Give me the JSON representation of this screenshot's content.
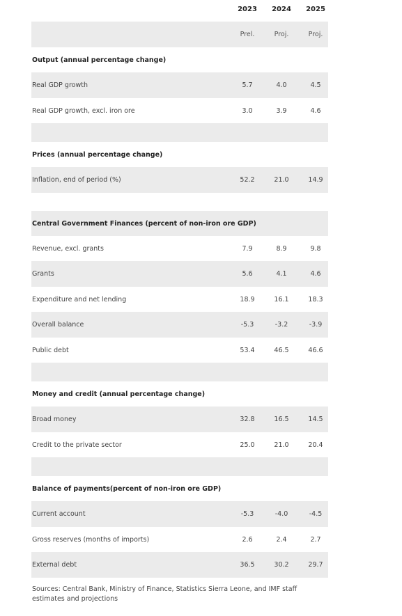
{
  "header": {
    "years": [
      "2023",
      "2024",
      "2025"
    ],
    "status": [
      "Prel.",
      "Proj.",
      "Proj."
    ]
  },
  "sections": [
    {
      "title": "Output (annual percentage change)",
      "rows": [
        {
          "label": "Real GDP growth",
          "values": [
            "5.7",
            "4.0",
            "4.5"
          ]
        },
        {
          "label": "Real GDP growth, excl. iron ore",
          "values": [
            "3.0",
            "3.9",
            "4.6"
          ]
        }
      ]
    },
    {
      "title": "Prices (annual percentage change)",
      "rows": [
        {
          "label": "Inflation, end of period (%)",
          "values": [
            "52.2",
            "21.0",
            "14.9"
          ]
        }
      ]
    },
    {
      "title": "Central Government Finances (percent of non-iron ore GDP)",
      "rows": [
        {
          "label": "Revenue, excl. grants",
          "values": [
            "7.9",
            "8.9",
            "9.8"
          ]
        },
        {
          "label": "Grants",
          "values": [
            "5.6",
            "4.1",
            "4.6"
          ]
        },
        {
          "label": "Expenditure and net lending",
          "values": [
            "18.9",
            "16.1",
            "18.3"
          ]
        },
        {
          "label": "Overall balance",
          "values": [
            "-5.3",
            "-3.2",
            "-3.9"
          ]
        },
        {
          "label": "Public debt",
          "values": [
            "53.4",
            "46.5",
            "46.6"
          ]
        }
      ]
    },
    {
      "title": "Money and credit (annual percentage change)",
      "rows": [
        {
          "label": "Broad money",
          "values": [
            "32.8",
            "16.5",
            "14.5"
          ]
        },
        {
          "label": "Credit to the private sector",
          "values": [
            "25.0",
            "21.0",
            "20.4"
          ]
        }
      ]
    },
    {
      "title": "Balance of payments(percent of non-iron ore GDP)",
      "rows": [
        {
          "label": "Current account",
          "values": [
            "-5.3",
            "-4.0",
            "-4.5"
          ]
        },
        {
          "label": "Gross reserves (months of imports)",
          "values": [
            "2.6",
            "2.4",
            "2.7"
          ]
        },
        {
          "label": "External debt",
          "values": [
            "36.5",
            "30.2",
            "29.7"
          ]
        }
      ]
    }
  ],
  "source_note": "Sources: Central Bank, Ministry of Finance, Statistics Sierra Leone, and IMF staff estimates and projections",
  "colors": {
    "row_shade": "#ebebeb",
    "text": "#444444"
  }
}
